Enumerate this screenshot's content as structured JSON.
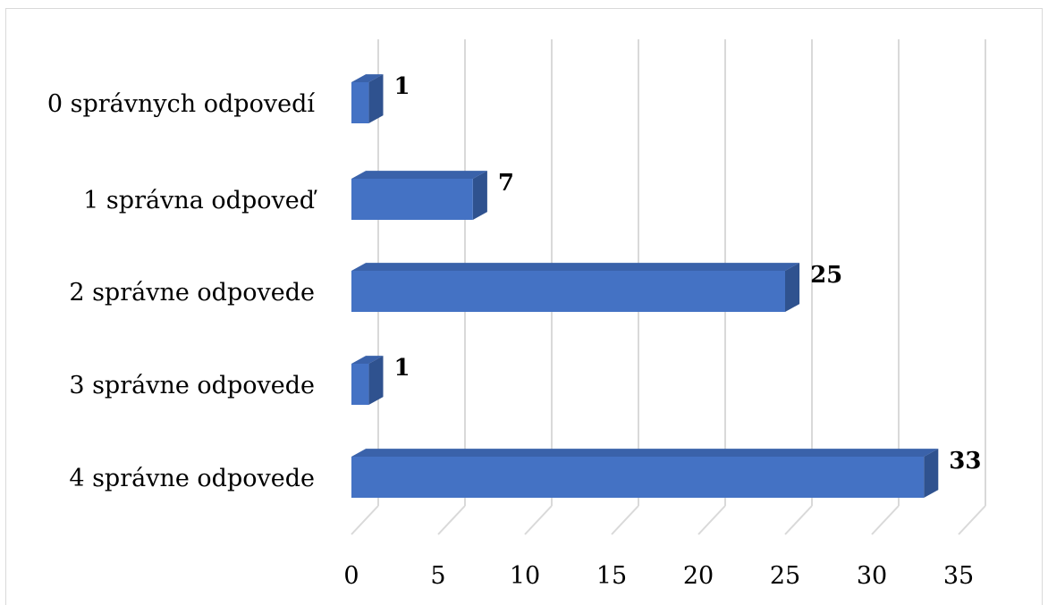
{
  "chart_data": {
    "type": "bar",
    "orientation": "horizontal",
    "style": "3d",
    "categories": [
      "0 správnych odpovedí",
      "1 správna odpoveď",
      "2 správne odpovede",
      "3 správne odpovede",
      "4 správne odpovede"
    ],
    "values": [
      1,
      7,
      25,
      1,
      33
    ],
    "data_labels": [
      "1",
      "7",
      "25",
      "1",
      "33"
    ],
    "xticks": [
      "0",
      "5",
      "10",
      "15",
      "20",
      "25",
      "30",
      "35"
    ],
    "xlim": [
      0,
      35
    ],
    "grid": true,
    "legend": "none",
    "colors": {
      "bar_front": "#4472c4",
      "bar_top": "#3a62aa",
      "bar_side": "#2f528f",
      "grid": "#d9d9d9"
    }
  }
}
